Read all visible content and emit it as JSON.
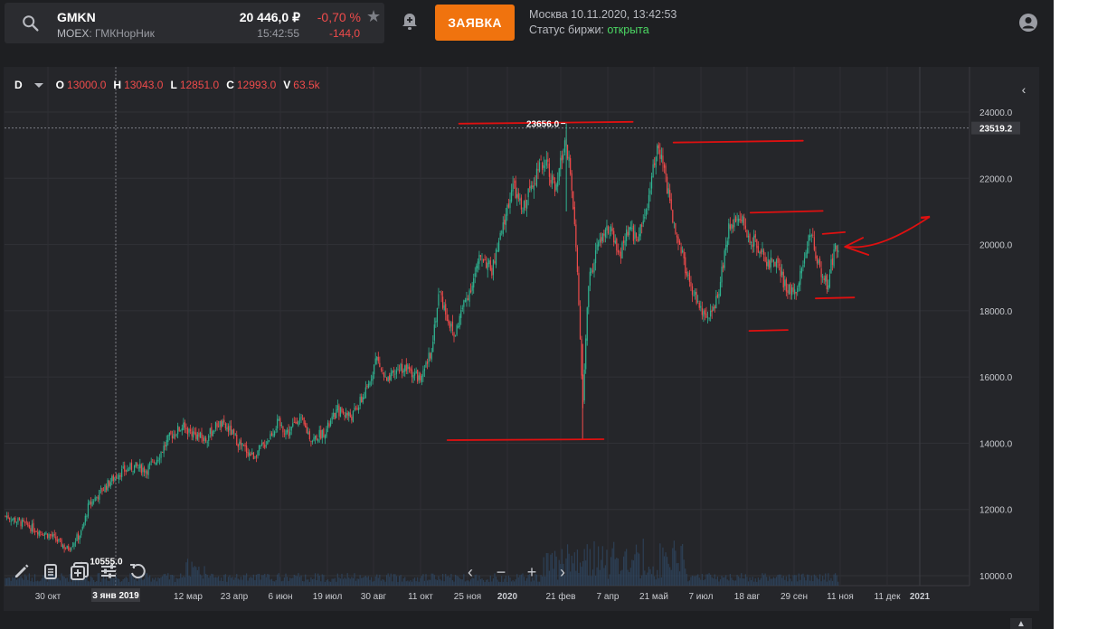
{
  "header": {
    "ticker": "GMKN",
    "exchange_prefix": "MOEX",
    "exchange_name": ": ГМКНорНик",
    "price": "20 446,0 ₽",
    "time": "15:42:55",
    "change_pct": "-0,70 %",
    "change_abs": "-144,0",
    "order_button": "ЗАЯВКА",
    "market_line": "Москва 10.11.2020, 13:42:53",
    "status_label": "Статус биржи: ",
    "status_value": "открыта"
  },
  "legend": {
    "interval": "D",
    "o_label": "O",
    "o_value": "13000.0",
    "h_label": "H",
    "h_value": "13043.0",
    "l_label": "L",
    "l_value": "12851.0",
    "c_label": "C",
    "c_value": "12993.0",
    "v_label": "V",
    "v_value": "63.5k"
  },
  "chart_data": {
    "type": "candlestick",
    "ylim": [
      9800,
      24600
    ],
    "y_ticks": [
      24000,
      22000,
      20000,
      18000,
      16000,
      14000,
      12000,
      10000
    ],
    "y_tick_labels": [
      "24000.0",
      "22000.0",
      "20000.0",
      "18000.0",
      "16000.0",
      "14000.0",
      "12000.0",
      "10000.0"
    ],
    "x_labels": [
      "30 окт",
      "3 янв 2019",
      "12 мар",
      "23 апр",
      "6 июн",
      "19 июл",
      "30 авг",
      "11 окт",
      "25 ноя",
      "2020",
      "21 фев",
      "7 апр",
      "21 май",
      "7 июл",
      "18 авг",
      "29 сен",
      "11 ноя",
      "11 дек",
      "2021"
    ],
    "current_price": 23519.2,
    "current_price_label": "23519.2",
    "max_label": "23656.0",
    "max_value": 23656.0,
    "min_label": "10555.0",
    "min_value": 10555.0,
    "crosshair_label": "3 янв 2019",
    "up_color": "#2fb391",
    "down_color": "#ef4b4b",
    "close_path": [
      [
        11020,
        11800
      ],
      [
        11260,
        11400
      ],
      [
        11400,
        11200
      ],
      [
        11540,
        10800
      ],
      [
        11660,
        11300
      ],
      [
        11720,
        12100
      ],
      [
        11840,
        12600
      ],
      [
        11980,
        13100
      ],
      [
        12110,
        13300
      ],
      [
        12220,
        13200
      ],
      [
        12320,
        13600
      ],
      [
        12420,
        14200
      ],
      [
        12520,
        14500
      ],
      [
        12620,
        14300
      ],
      [
        12720,
        14100
      ],
      [
        12830,
        14600
      ],
      [
        12930,
        14400
      ],
      [
        13010,
        14000
      ],
      [
        13130,
        13600
      ],
      [
        13240,
        14000
      ],
      [
        13340,
        14600
      ],
      [
        13440,
        14300
      ],
      [
        13520,
        14800
      ],
      [
        13640,
        14100
      ],
      [
        13760,
        14400
      ],
      [
        13860,
        15000
      ],
      [
        13980,
        14800
      ],
      [
        14110,
        15600
      ],
      [
        14190,
        16600
      ],
      [
        14280,
        15800
      ],
      [
        14390,
        16300
      ],
      [
        14480,
        16200
      ],
      [
        14580,
        15900
      ],
      [
        14660,
        16800
      ],
      [
        14730,
        18600
      ],
      [
        14790,
        17900
      ],
      [
        14860,
        17200
      ],
      [
        14920,
        18000
      ],
      [
        15010,
        18800
      ],
      [
        15090,
        19700
      ],
      [
        15180,
        19200
      ],
      [
        15270,
        20400
      ],
      [
        15360,
        21800
      ],
      [
        15440,
        21000
      ],
      [
        15540,
        22000
      ],
      [
        15650,
        22600
      ],
      [
        15730,
        21500
      ],
      [
        15800,
        23000
      ],
      [
        15850,
        22400
      ],
      [
        15890,
        20500
      ],
      [
        15920,
        19000
      ],
      [
        15960,
        15000
      ],
      [
        15990,
        17400
      ],
      [
        16010,
        18800
      ],
      [
        16090,
        20000
      ],
      [
        16190,
        20500
      ],
      [
        16270,
        19600
      ],
      [
        16350,
        20400
      ],
      [
        16440,
        20200
      ],
      [
        16530,
        21500
      ],
      [
        16590,
        22900
      ],
      [
        16650,
        22400
      ],
      [
        16720,
        21000
      ],
      [
        16810,
        19800
      ],
      [
        16880,
        18700
      ],
      [
        16960,
        18200
      ],
      [
        17000,
        17800
      ],
      [
        17040,
        17600
      ],
      [
        17130,
        18700
      ],
      [
        17210,
        20400
      ],
      [
        17300,
        21000
      ],
      [
        17370,
        20300
      ],
      [
        17450,
        20000
      ],
      [
        17550,
        19500
      ],
      [
        17640,
        19300
      ],
      [
        17710,
        18600
      ],
      [
        17790,
        18700
      ],
      [
        17870,
        19600
      ],
      [
        17920,
        20400
      ],
      [
        17990,
        19300
      ],
      [
        18060,
        18800
      ],
      [
        18110,
        19700
      ],
      [
        18170,
        20100
      ]
    ],
    "resistance_lines": [
      [
        14900,
        16390,
        23650
      ],
      [
        16740,
        17850,
        23080
      ],
      [
        17400,
        18020,
        20960
      ],
      [
        18020,
        18210,
        20320
      ]
    ],
    "support_lines": [
      [
        14800,
        16140,
        14120
      ],
      [
        17390,
        17720,
        17420
      ],
      [
        17960,
        18290,
        18400
      ]
    ]
  },
  "toolbar": {
    "tools": [
      "pencil-icon",
      "list-icon",
      "add-indicator-icon",
      "settings-sliders-icon",
      "reset-icon"
    ],
    "zoom": [
      "chevron-left-icon",
      "zoom-out-icon",
      "zoom-in-icon",
      "chevron-right-icon"
    ]
  }
}
